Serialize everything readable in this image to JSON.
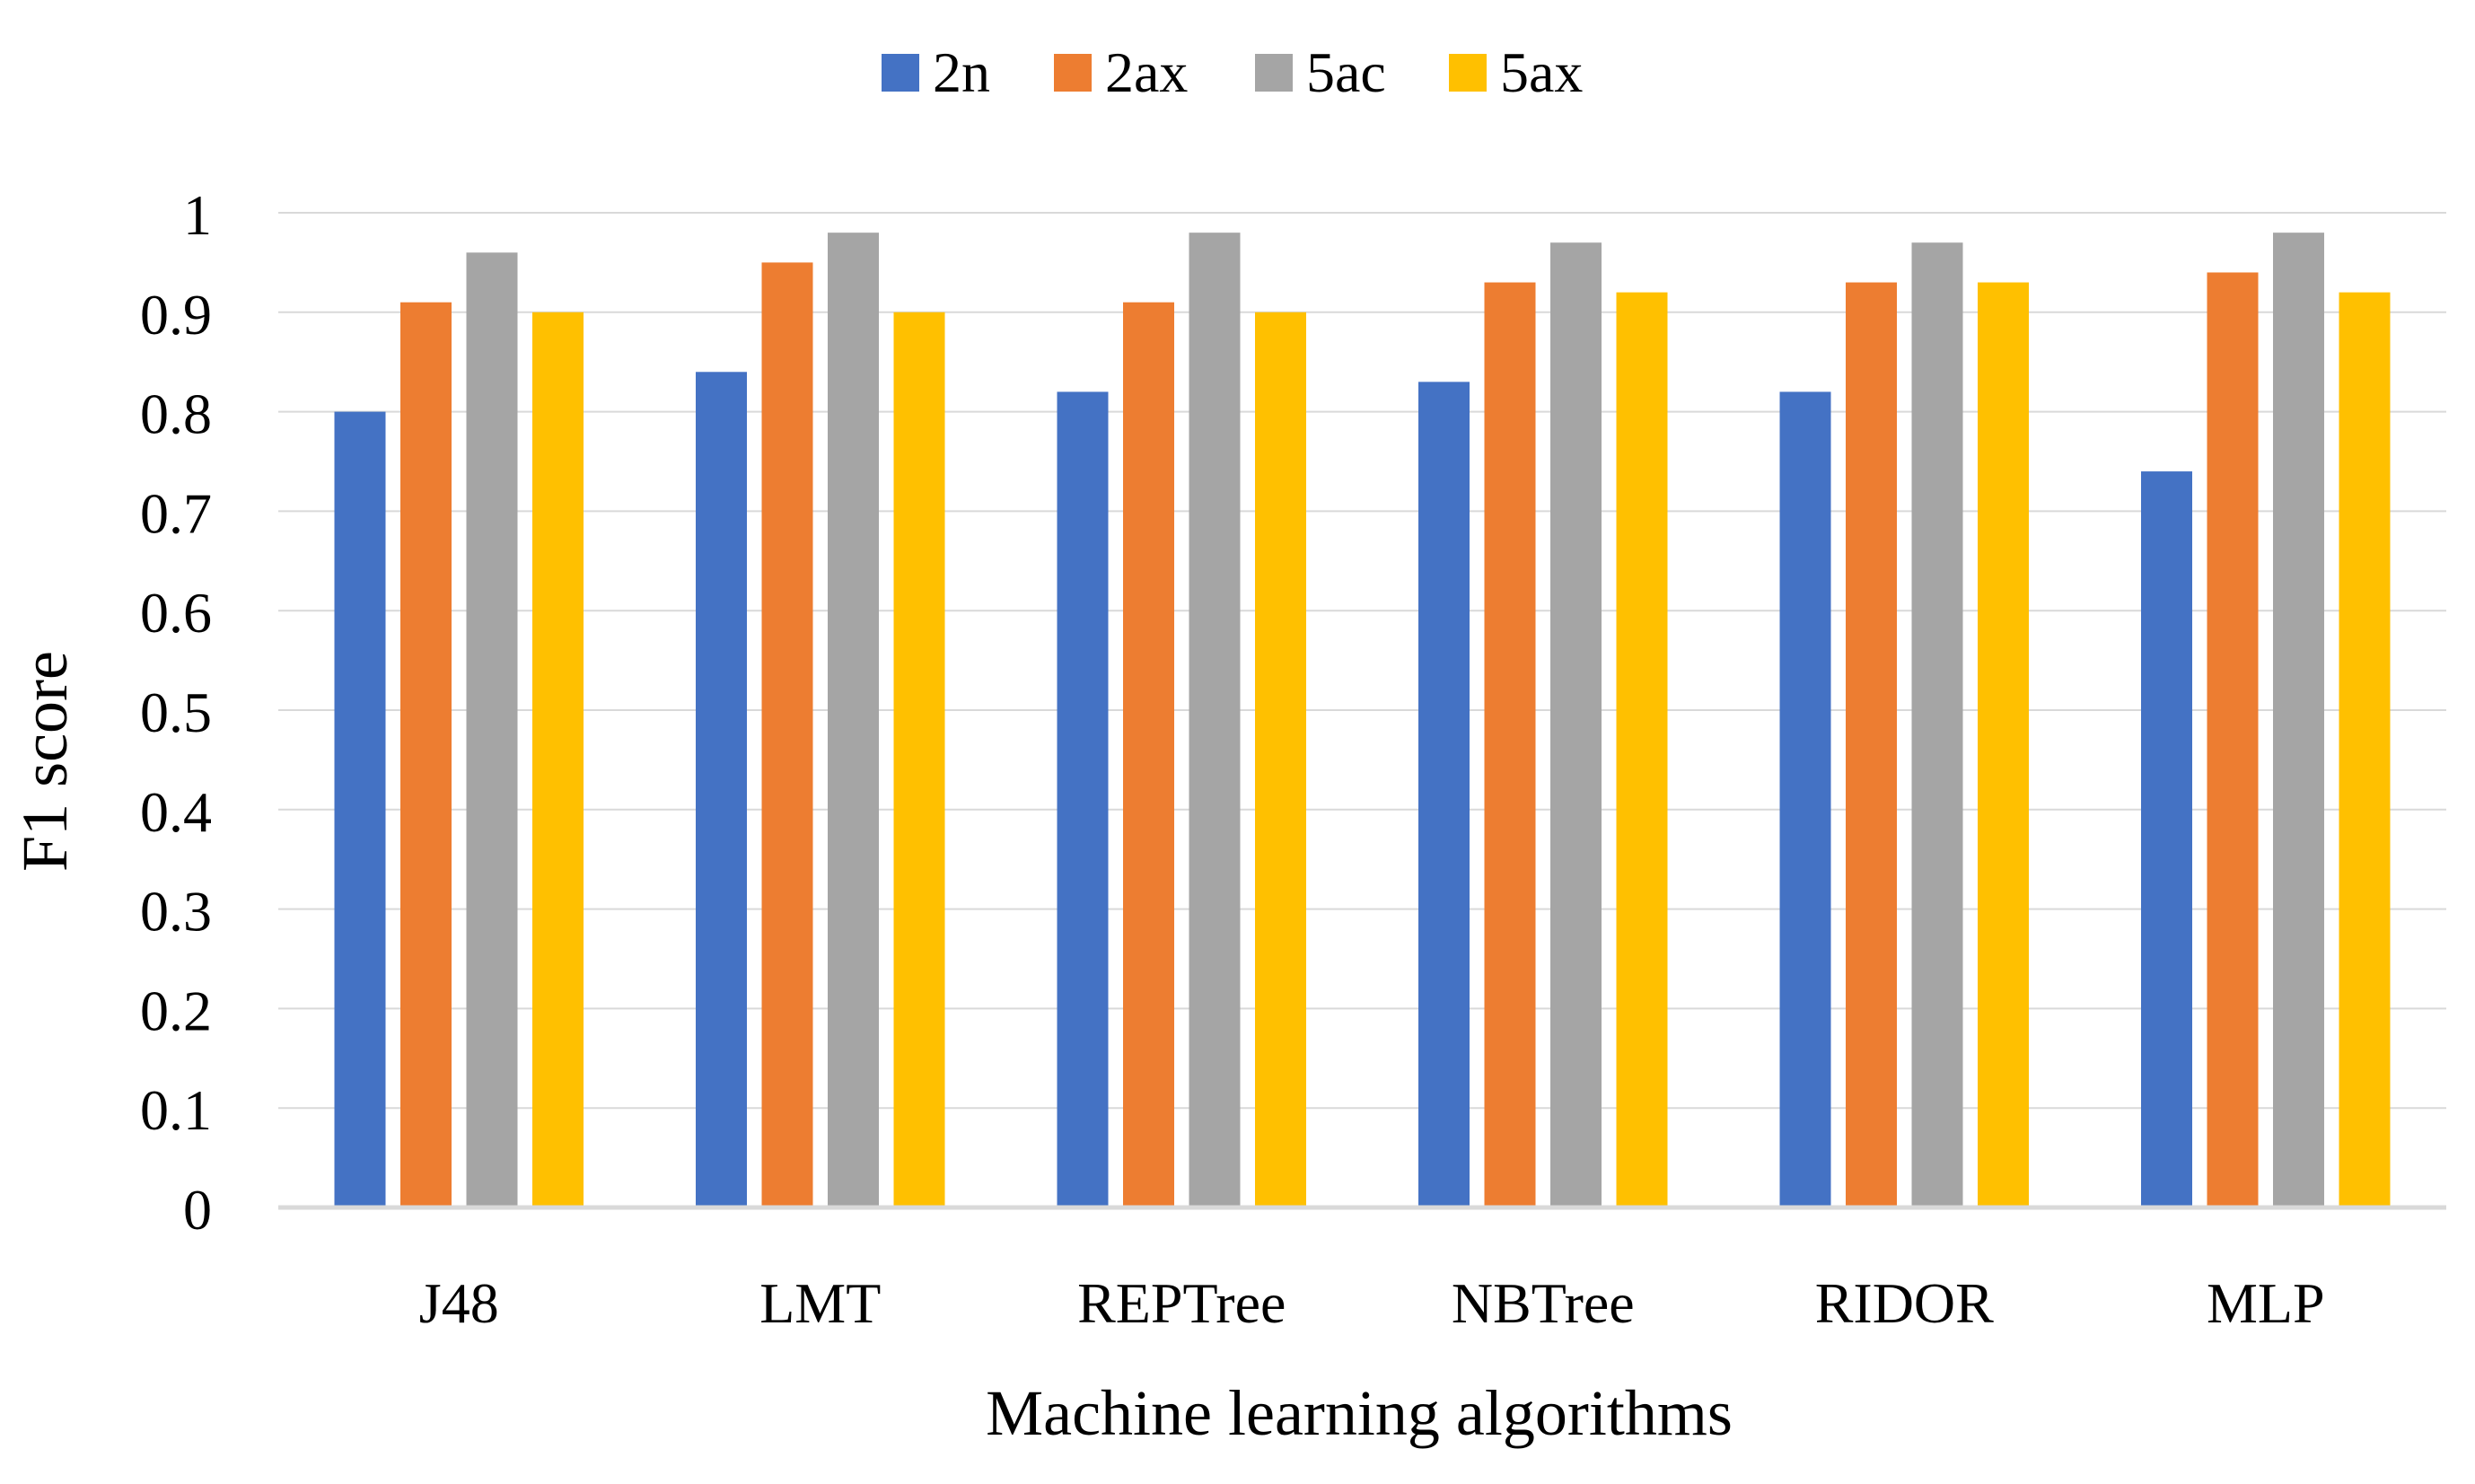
{
  "chart_data": {
    "type": "bar",
    "title": "",
    "xlabel": "Machine learning algorithms",
    "ylabel": "F1 score",
    "ylim": [
      0,
      1
    ],
    "yticks": [
      "0",
      "0.1",
      "0.2",
      "0.3",
      "0.4",
      "0.5",
      "0.6",
      "0.7",
      "0.8",
      "0.9",
      "1"
    ],
    "categories": [
      "J48",
      "LMT",
      "REPTree",
      "NBTree",
      "RIDOR",
      "MLP"
    ],
    "grid": true,
    "legend_position": "top-center",
    "series": [
      {
        "name": "2n",
        "color": "#4472c4",
        "values": [
          0.8,
          0.84,
          0.82,
          0.83,
          0.82,
          0.74
        ]
      },
      {
        "name": "2ax",
        "color": "#ed7d31",
        "values": [
          0.91,
          0.95,
          0.91,
          0.93,
          0.93,
          0.94
        ]
      },
      {
        "name": "5ac",
        "color": "#a5a5a5",
        "values": [
          0.96,
          0.98,
          0.98,
          0.97,
          0.97,
          0.98
        ]
      },
      {
        "name": "5ax",
        "color": "#ffc000",
        "values": [
          0.9,
          0.9,
          0.9,
          0.92,
          0.93,
          0.92
        ]
      }
    ]
  }
}
